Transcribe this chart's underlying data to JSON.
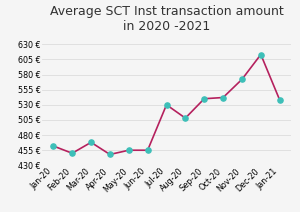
{
  "title": "Average SCT Inst transaction amount\nin 2020 -2021",
  "x_labels": [
    "Jan-20",
    "Feb-20",
    "Mar-20",
    "Apr-20",
    "May-20",
    "Jun-20",
    "Jul-20",
    "Aug-20",
    "Sep-20",
    "Oct-20",
    "Nov-20",
    "Dec-20",
    "Jan-21"
  ],
  "values": [
    462,
    450,
    468,
    448,
    455,
    455,
    530,
    508,
    540,
    542,
    572,
    613,
    538
  ],
  "line_color": "#b5215e",
  "marker_color": "#3dbfb8",
  "ylim": [
    430,
    640
  ],
  "yticks": [
    430,
    455,
    480,
    505,
    530,
    555,
    580,
    605,
    630
  ],
  "background_color": "#f5f5f5",
  "grid_color": "#dddddd",
  "title_fontsize": 9,
  "tick_fontsize": 5.8
}
